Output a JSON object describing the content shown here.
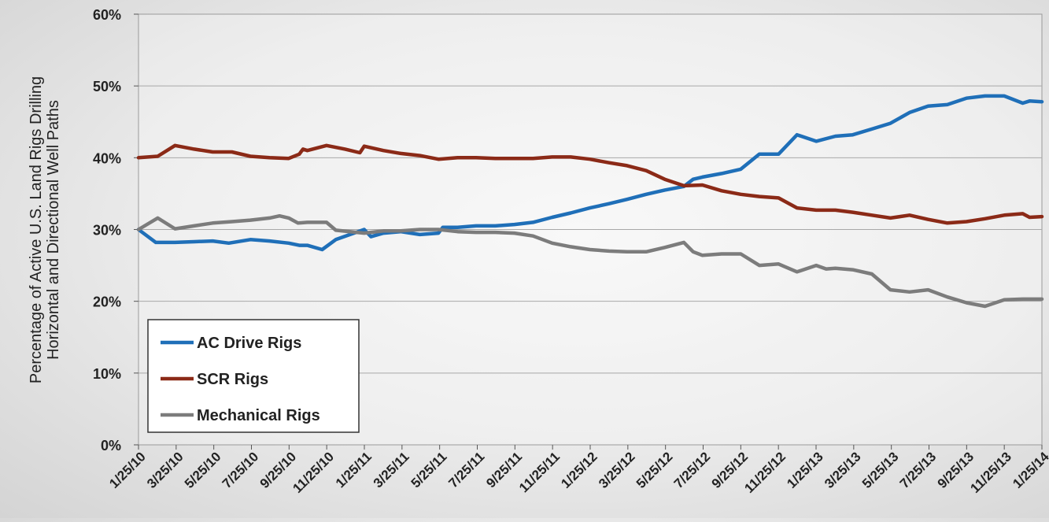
{
  "chart_data": {
    "type": "line",
    "title": "",
    "xlabel": "",
    "ylabel": "Percentage of Active U.S. Land Rigs Drilling Horizontal and Directional Well Paths",
    "ylabel_lines": [
      "Percentage of Active U.S. Land Rigs Drilling",
      "Horizontal and Directional Well Paths"
    ],
    "xlim": [
      "2010-01-25",
      "2014-01-25"
    ],
    "ylim": [
      0,
      60
    ],
    "yticks": [
      0,
      10,
      20,
      30,
      40,
      50,
      60
    ],
    "ytick_labels": [
      "0%",
      "10%",
      "20%",
      "30%",
      "40%",
      "50%",
      "60%"
    ],
    "xtick_labels": [
      "1/25/10",
      "3/25/10",
      "5/25/10",
      "7/25/10",
      "9/25/10",
      "11/25/10",
      "1/25/11",
      "3/25/11",
      "5/25/11",
      "7/25/11",
      "9/25/11",
      "11/25/11",
      "1/25/12",
      "3/25/12",
      "5/25/12",
      "7/25/12",
      "9/25/12",
      "11/25/12",
      "1/25/13",
      "3/25/13",
      "5/25/13",
      "7/25/13",
      "9/25/13",
      "11/25/13",
      "1/25/14"
    ],
    "grid": "horizontal",
    "legend_position": "bottom-left",
    "series": [
      {
        "name": "AC Drive Rigs",
        "color": "#1f6fb8",
        "points": [
          [
            "2010-01-25",
            30.0
          ],
          [
            "2010-02-22",
            28.2
          ],
          [
            "2010-03-25",
            28.2
          ],
          [
            "2010-04-25",
            28.3
          ],
          [
            "2010-05-25",
            28.4
          ],
          [
            "2010-06-20",
            28.1
          ],
          [
            "2010-07-25",
            28.6
          ],
          [
            "2010-08-25",
            28.4
          ],
          [
            "2010-09-25",
            28.1
          ],
          [
            "2010-10-12",
            27.8
          ],
          [
            "2010-10-25",
            27.8
          ],
          [
            "2010-11-18",
            27.2
          ],
          [
            "2010-12-10",
            28.6
          ],
          [
            "2011-01-25",
            30.0
          ],
          [
            "2011-02-05",
            29.0
          ],
          [
            "2011-02-25",
            29.5
          ],
          [
            "2011-03-25",
            29.7
          ],
          [
            "2011-04-25",
            29.3
          ],
          [
            "2011-05-25",
            29.5
          ],
          [
            "2011-06-01",
            30.3
          ],
          [
            "2011-06-25",
            30.3
          ],
          [
            "2011-07-25",
            30.5
          ],
          [
            "2011-08-25",
            30.5
          ],
          [
            "2011-09-25",
            30.7
          ],
          [
            "2011-10-25",
            31.0
          ],
          [
            "2011-11-25",
            31.7
          ],
          [
            "2011-12-25",
            32.3
          ],
          [
            "2012-01-25",
            33.0
          ],
          [
            "2012-02-25",
            33.6
          ],
          [
            "2012-03-25",
            34.2
          ],
          [
            "2012-04-25",
            34.9
          ],
          [
            "2012-05-25",
            35.5
          ],
          [
            "2012-06-25",
            36.0
          ],
          [
            "2012-07-10",
            37.0
          ],
          [
            "2012-07-25",
            37.3
          ],
          [
            "2012-08-25",
            37.8
          ],
          [
            "2012-09-25",
            38.4
          ],
          [
            "2012-10-25",
            40.5
          ],
          [
            "2012-11-25",
            40.5
          ],
          [
            "2012-12-25",
            43.2
          ],
          [
            "2013-01-25",
            42.3
          ],
          [
            "2013-02-25",
            43.0
          ],
          [
            "2013-03-25",
            43.2
          ],
          [
            "2013-04-25",
            44.0
          ],
          [
            "2013-05-25",
            44.8
          ],
          [
            "2013-06-25",
            46.3
          ],
          [
            "2013-07-25",
            47.2
          ],
          [
            "2013-08-25",
            47.4
          ],
          [
            "2013-09-25",
            48.3
          ],
          [
            "2013-10-25",
            48.6
          ],
          [
            "2013-11-25",
            48.6
          ],
          [
            "2013-12-25",
            47.6
          ],
          [
            "2014-01-05",
            47.9
          ],
          [
            "2014-01-25",
            47.8
          ]
        ]
      },
      {
        "name": "SCR Rigs",
        "color": "#8b2a17",
        "points": [
          [
            "2010-01-25",
            40.0
          ],
          [
            "2010-02-25",
            40.2
          ],
          [
            "2010-03-25",
            41.7
          ],
          [
            "2010-04-25",
            41.2
          ],
          [
            "2010-05-25",
            40.8
          ],
          [
            "2010-06-25",
            40.8
          ],
          [
            "2010-07-25",
            40.2
          ],
          [
            "2010-08-25",
            40.0
          ],
          [
            "2010-09-25",
            39.9
          ],
          [
            "2010-10-12",
            40.5
          ],
          [
            "2010-10-18",
            41.2
          ],
          [
            "2010-10-25",
            41.0
          ],
          [
            "2010-11-25",
            41.7
          ],
          [
            "2010-12-25",
            41.2
          ],
          [
            "2011-01-18",
            40.7
          ],
          [
            "2011-01-25",
            41.6
          ],
          [
            "2011-02-25",
            41.0
          ],
          [
            "2011-03-25",
            40.6
          ],
          [
            "2011-04-25",
            40.3
          ],
          [
            "2011-05-25",
            39.8
          ],
          [
            "2011-06-25",
            40.0
          ],
          [
            "2011-07-25",
            40.0
          ],
          [
            "2011-08-25",
            39.9
          ],
          [
            "2011-09-25",
            39.9
          ],
          [
            "2011-10-25",
            39.9
          ],
          [
            "2011-11-25",
            40.1
          ],
          [
            "2011-12-25",
            40.1
          ],
          [
            "2012-01-25",
            39.8
          ],
          [
            "2012-02-25",
            39.3
          ],
          [
            "2012-03-25",
            38.9
          ],
          [
            "2012-04-25",
            38.2
          ],
          [
            "2012-05-25",
            37.0
          ],
          [
            "2012-06-25",
            36.1
          ],
          [
            "2012-07-25",
            36.2
          ],
          [
            "2012-08-25",
            35.4
          ],
          [
            "2012-09-25",
            34.9
          ],
          [
            "2012-10-25",
            34.6
          ],
          [
            "2012-11-25",
            34.4
          ],
          [
            "2012-12-25",
            33.0
          ],
          [
            "2013-01-25",
            32.7
          ],
          [
            "2013-02-25",
            32.7
          ],
          [
            "2013-03-25",
            32.4
          ],
          [
            "2013-04-25",
            32.0
          ],
          [
            "2013-05-25",
            31.6
          ],
          [
            "2013-06-25",
            32.0
          ],
          [
            "2013-07-25",
            31.4
          ],
          [
            "2013-08-25",
            30.9
          ],
          [
            "2013-09-25",
            31.1
          ],
          [
            "2013-10-25",
            31.5
          ],
          [
            "2013-11-25",
            32.0
          ],
          [
            "2013-12-25",
            32.2
          ],
          [
            "2014-01-05",
            31.7
          ],
          [
            "2014-01-25",
            31.8
          ]
        ]
      },
      {
        "name": "Mechanical Rigs",
        "color": "#7c7c7c",
        "points": [
          [
            "2010-01-25",
            30.0
          ],
          [
            "2010-02-25",
            31.6
          ],
          [
            "2010-03-25",
            30.1
          ],
          [
            "2010-04-25",
            30.5
          ],
          [
            "2010-05-25",
            30.9
          ],
          [
            "2010-06-25",
            31.1
          ],
          [
            "2010-07-25",
            31.3
          ],
          [
            "2010-08-25",
            31.6
          ],
          [
            "2010-09-10",
            31.9
          ],
          [
            "2010-09-25",
            31.6
          ],
          [
            "2010-10-10",
            30.9
          ],
          [
            "2010-10-25",
            31.0
          ],
          [
            "2010-11-25",
            31.0
          ],
          [
            "2010-12-10",
            29.9
          ],
          [
            "2011-01-25",
            29.5
          ],
          [
            "2011-02-25",
            29.8
          ],
          [
            "2011-03-25",
            29.8
          ],
          [
            "2011-04-25",
            30.0
          ],
          [
            "2011-05-25",
            30.0
          ],
          [
            "2011-06-25",
            29.7
          ],
          [
            "2011-07-25",
            29.6
          ],
          [
            "2011-08-25",
            29.6
          ],
          [
            "2011-09-25",
            29.5
          ],
          [
            "2011-10-25",
            29.1
          ],
          [
            "2011-11-25",
            28.1
          ],
          [
            "2011-12-25",
            27.6
          ],
          [
            "2012-01-25",
            27.2
          ],
          [
            "2012-02-25",
            27.0
          ],
          [
            "2012-03-25",
            26.9
          ],
          [
            "2012-04-25",
            26.9
          ],
          [
            "2012-05-25",
            27.5
          ],
          [
            "2012-06-25",
            28.2
          ],
          [
            "2012-07-10",
            26.9
          ],
          [
            "2012-07-25",
            26.4
          ],
          [
            "2012-08-25",
            26.6
          ],
          [
            "2012-09-25",
            26.6
          ],
          [
            "2012-10-25",
            25.0
          ],
          [
            "2012-11-25",
            25.2
          ],
          [
            "2012-12-25",
            24.1
          ],
          [
            "2013-01-25",
            25.0
          ],
          [
            "2013-02-10",
            24.5
          ],
          [
            "2013-02-25",
            24.6
          ],
          [
            "2013-03-25",
            24.4
          ],
          [
            "2013-04-25",
            23.8
          ],
          [
            "2013-05-25",
            21.6
          ],
          [
            "2013-06-25",
            21.3
          ],
          [
            "2013-07-25",
            21.6
          ],
          [
            "2013-08-25",
            20.6
          ],
          [
            "2013-09-25",
            19.8
          ],
          [
            "2013-10-25",
            19.3
          ],
          [
            "2013-11-25",
            20.2
          ],
          [
            "2013-12-25",
            20.3
          ],
          [
            "2014-01-25",
            20.3
          ]
        ]
      }
    ]
  }
}
